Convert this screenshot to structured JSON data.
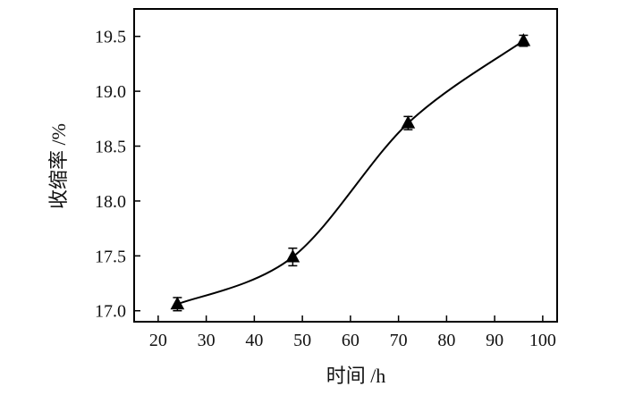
{
  "chart_data": {
    "type": "line",
    "title": "",
    "xlabel": "时间 /h",
    "ylabel": "收缩率 /%",
    "xlim": [
      15,
      103
    ],
    "ylim": [
      16.9,
      19.75
    ],
    "x_ticks": [
      20,
      30,
      40,
      50,
      60,
      70,
      80,
      90,
      100
    ],
    "x_tick_labels": [
      "20",
      "30",
      "40",
      "50",
      "60",
      "70",
      "80",
      "90",
      "100"
    ],
    "y_ticks": [
      17.0,
      17.5,
      18.0,
      18.5,
      19.0,
      19.5
    ],
    "y_tick_labels": [
      "17.0",
      "17.5",
      "18.0",
      "18.5",
      "19.0",
      "19.5"
    ],
    "grid": false,
    "legend": "none",
    "marker": "triangle",
    "line_color": "#000000",
    "series": [
      {
        "x": [
          24,
          48,
          72,
          96
        ],
        "y": [
          17.06,
          17.49,
          18.71,
          19.46
        ],
        "error": [
          0.06,
          0.08,
          0.06,
          0.05
        ]
      }
    ]
  }
}
